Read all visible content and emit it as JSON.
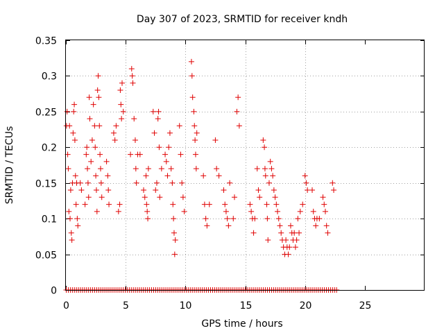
{
  "chart_data": {
    "type": "scatter",
    "title": "Day 307 of 2023, SRMTID for receiver kndh",
    "xlabel": "GPS time / hours",
    "ylabel": "SRMTID / TECUs",
    "xlim": [
      0,
      30
    ],
    "ylim": [
      0,
      0.35
    ],
    "x_ticks": [
      "0",
      "5",
      "10",
      "15",
      "20",
      "25"
    ],
    "y_ticks": [
      "0",
      "0.05",
      "0.1",
      "0.15",
      "0.2",
      "0.25",
      "0.3",
      "0.35"
    ],
    "grid": true,
    "marker": "+",
    "series_color": "#e00000",
    "series": [
      {
        "name": "SRMTID",
        "points": [
          [
            0.05,
            0.23
          ],
          [
            0.1,
            0.25
          ],
          [
            0.15,
            0.19
          ],
          [
            0.2,
            0.17
          ],
          [
            0.25,
            0.11
          ],
          [
            0.3,
            0.23
          ],
          [
            0.35,
            0.1
          ],
          [
            0.4,
            0.14
          ],
          [
            0.45,
            0.08
          ],
          [
            0.5,
            0.07
          ],
          [
            0.55,
            0.15
          ],
          [
            0.6,
            0.22
          ],
          [
            0.65,
            0.25
          ],
          [
            0.7,
            0.26
          ],
          [
            0.75,
            0.21
          ],
          [
            0.8,
            0.16
          ],
          [
            0.85,
            0.12
          ],
          [
            0.9,
            0.15
          ],
          [
            0.95,
            0.1
          ],
          [
            1.0,
            0.09
          ],
          [
            1.2,
            0.15
          ],
          [
            1.3,
            0.14
          ],
          [
            1.6,
            0.12
          ],
          [
            1.7,
            0.19
          ],
          [
            1.75,
            0.2
          ],
          [
            1.8,
            0.17
          ],
          [
            1.85,
            0.15
          ],
          [
            1.9,
            0.13
          ],
          [
            1.95,
            0.27
          ],
          [
            2.0,
            0.24
          ],
          [
            2.1,
            0.18
          ],
          [
            2.2,
            0.21
          ],
          [
            2.3,
            0.26
          ],
          [
            2.4,
            0.23
          ],
          [
            2.45,
            0.2
          ],
          [
            2.5,
            0.16
          ],
          [
            2.55,
            0.14
          ],
          [
            2.6,
            0.11
          ],
          [
            2.65,
            0.28
          ],
          [
            2.7,
            0.3
          ],
          [
            2.75,
            0.27
          ],
          [
            2.8,
            0.23
          ],
          [
            2.85,
            0.19
          ],
          [
            2.9,
            0.17
          ],
          [
            2.95,
            0.15
          ],
          [
            3.0,
            0.13
          ],
          [
            3.4,
            0.18
          ],
          [
            3.5,
            0.16
          ],
          [
            3.55,
            0.14
          ],
          [
            3.6,
            0.12
          ],
          [
            4.0,
            0.22
          ],
          [
            4.1,
            0.21
          ],
          [
            4.2,
            0.23
          ],
          [
            4.4,
            0.11
          ],
          [
            4.5,
            0.12
          ],
          [
            4.55,
            0.28
          ],
          [
            4.6,
            0.26
          ],
          [
            4.65,
            0.24
          ],
          [
            4.7,
            0.29
          ],
          [
            4.8,
            0.25
          ],
          [
            5.4,
            0.19
          ],
          [
            5.5,
            0.31
          ],
          [
            5.55,
            0.3
          ],
          [
            5.6,
            0.29
          ],
          [
            5.7,
            0.24
          ],
          [
            5.8,
            0.21
          ],
          [
            5.85,
            0.17
          ],
          [
            5.9,
            0.15
          ],
          [
            6.0,
            0.19
          ],
          [
            6.2,
            0.19
          ],
          [
            6.5,
            0.14
          ],
          [
            6.6,
            0.13
          ],
          [
            6.7,
            0.16
          ],
          [
            6.75,
            0.12
          ],
          [
            6.8,
            0.11
          ],
          [
            6.85,
            0.1
          ],
          [
            6.9,
            0.17
          ],
          [
            7.3,
            0.25
          ],
          [
            7.4,
            0.22
          ],
          [
            7.5,
            0.14
          ],
          [
            7.6,
            0.15
          ],
          [
            7.7,
            0.24
          ],
          [
            7.75,
            0.25
          ],
          [
            7.8,
            0.2
          ],
          [
            7.85,
            0.13
          ],
          [
            8.0,
            0.17
          ],
          [
            8.3,
            0.19
          ],
          [
            8.4,
            0.18
          ],
          [
            8.5,
            0.16
          ],
          [
            8.6,
            0.2
          ],
          [
            8.7,
            0.22
          ],
          [
            8.8,
            0.17
          ],
          [
            8.9,
            0.15
          ],
          [
            8.95,
            0.12
          ],
          [
            9.0,
            0.1
          ],
          [
            9.05,
            0.08
          ],
          [
            9.1,
            0.05
          ],
          [
            9.15,
            0.07
          ],
          [
            9.5,
            0.23
          ],
          [
            9.6,
            0.19
          ],
          [
            9.7,
            0.15
          ],
          [
            9.8,
            0.13
          ],
          [
            9.9,
            0.11
          ],
          [
            10.5,
            0.32
          ],
          [
            10.55,
            0.3
          ],
          [
            10.6,
            0.27
          ],
          [
            10.7,
            0.25
          ],
          [
            10.75,
            0.23
          ],
          [
            10.8,
            0.21
          ],
          [
            10.85,
            0.19
          ],
          [
            10.9,
            0.17
          ],
          [
            10.95,
            0.22
          ],
          [
            11.5,
            0.16
          ],
          [
            11.6,
            0.12
          ],
          [
            11.7,
            0.1
          ],
          [
            11.8,
            0.09
          ],
          [
            12.0,
            0.12
          ],
          [
            12.5,
            0.21
          ],
          [
            12.6,
            0.17
          ],
          [
            12.8,
            0.16
          ],
          [
            13.2,
            0.14
          ],
          [
            13.3,
            0.12
          ],
          [
            13.4,
            0.11
          ],
          [
            13.5,
            0.1
          ],
          [
            13.6,
            0.09
          ],
          [
            13.7,
            0.15
          ],
          [
            14.0,
            0.1
          ],
          [
            14.1,
            0.13
          ],
          [
            14.3,
            0.25
          ],
          [
            14.4,
            0.27
          ],
          [
            14.5,
            0.23
          ],
          [
            15.4,
            0.12
          ],
          [
            15.5,
            0.11
          ],
          [
            15.6,
            0.1
          ],
          [
            15.7,
            0.08
          ],
          [
            15.8,
            0.1
          ],
          [
            16.0,
            0.17
          ],
          [
            16.1,
            0.14
          ],
          [
            16.2,
            0.13
          ],
          [
            16.5,
            0.21
          ],
          [
            16.6,
            0.2
          ],
          [
            16.65,
            0.17
          ],
          [
            16.7,
            0.16
          ],
          [
            16.8,
            0.12
          ],
          [
            16.85,
            0.1
          ],
          [
            16.9,
            0.07
          ],
          [
            17.0,
            0.15
          ],
          [
            17.1,
            0.18
          ],
          [
            17.2,
            0.17
          ],
          [
            17.3,
            0.16
          ],
          [
            17.4,
            0.14
          ],
          [
            17.5,
            0.13
          ],
          [
            17.6,
            0.12
          ],
          [
            17.7,
            0.11
          ],
          [
            17.8,
            0.1
          ],
          [
            17.9,
            0.09
          ],
          [
            18.0,
            0.08
          ],
          [
            18.1,
            0.07
          ],
          [
            18.2,
            0.06
          ],
          [
            18.3,
            0.05
          ],
          [
            18.4,
            0.07
          ],
          [
            18.5,
            0.06
          ],
          [
            18.6,
            0.05
          ],
          [
            18.7,
            0.06
          ],
          [
            18.8,
            0.09
          ],
          [
            18.9,
            0.08
          ],
          [
            19.0,
            0.07
          ],
          [
            19.1,
            0.08
          ],
          [
            19.2,
            0.06
          ],
          [
            19.3,
            0.07
          ],
          [
            19.4,
            0.1
          ],
          [
            19.5,
            0.08
          ],
          [
            19.6,
            0.11
          ],
          [
            19.8,
            0.12
          ],
          [
            20.0,
            0.16
          ],
          [
            20.1,
            0.15
          ],
          [
            20.2,
            0.14
          ],
          [
            20.6,
            0.14
          ],
          [
            20.7,
            0.11
          ],
          [
            20.8,
            0.1
          ],
          [
            20.9,
            0.09
          ],
          [
            21.0,
            0.1
          ],
          [
            21.2,
            0.1
          ],
          [
            21.5,
            0.13
          ],
          [
            21.6,
            0.12
          ],
          [
            21.7,
            0.11
          ],
          [
            21.8,
            0.09
          ],
          [
            21.9,
            0.08
          ],
          [
            22.3,
            0.15
          ],
          [
            22.4,
            0.14
          ]
        ]
      }
    ]
  }
}
